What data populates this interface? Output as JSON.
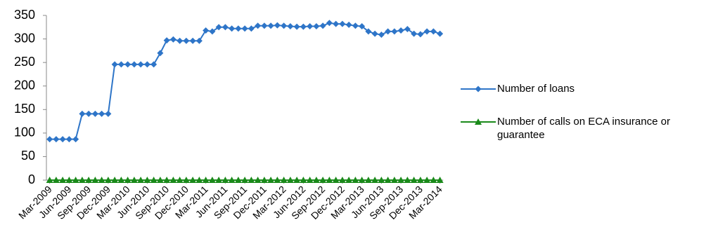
{
  "chart_data": {
    "type": "line",
    "categories": [
      "Mar-2009",
      null,
      null,
      "Jun-2009",
      null,
      null,
      "Sep-2009",
      null,
      null,
      "Dec-2009",
      null,
      null,
      "Mar-2010",
      null,
      null,
      "Jun-2010",
      null,
      null,
      "Sep-2010",
      null,
      null,
      "Dec-2010",
      null,
      null,
      "Mar-2011",
      null,
      null,
      "Jun-2011",
      null,
      null,
      "Sep-2011",
      null,
      null,
      "Dec-2011",
      null,
      null,
      "Mar-2012",
      null,
      null,
      "Jun-2012",
      null,
      null,
      "Sep-2012",
      null,
      null,
      "Dec-2012",
      null,
      null,
      "Mar-2013",
      null,
      null,
      "Jun-2013",
      null,
      null,
      "Sep-2013",
      null,
      null,
      "Dec-2013",
      null,
      null,
      "Mar-2014"
    ],
    "series": [
      {
        "name": "Number of loans",
        "color": "#2e75c8",
        "marker": "diamond",
        "values": [
          87,
          87,
          87,
          87,
          87,
          141,
          141,
          141,
          141,
          141,
          246,
          246,
          246,
          246,
          246,
          246,
          246,
          270,
          297,
          299,
          296,
          296,
          296,
          296,
          318,
          316,
          325,
          325,
          322,
          322,
          322,
          322,
          328,
          328,
          328,
          329,
          328,
          327,
          326,
          326,
          327,
          327,
          328,
          334,
          332,
          332,
          330,
          328,
          327,
          316,
          311,
          309,
          316,
          316,
          318,
          321,
          311,
          310,
          316,
          316,
          311
        ]
      },
      {
        "name": "Number of calls on ECA insurance or guarantee",
        "color": "#1a8a1a",
        "marker": "triangle",
        "values": [
          0,
          0,
          0,
          0,
          0,
          0,
          0,
          0,
          0,
          0,
          0,
          0,
          0,
          0,
          0,
          0,
          0,
          0,
          0,
          0,
          0,
          0,
          0,
          0,
          0,
          0,
          0,
          0,
          0,
          0,
          0,
          0,
          0,
          0,
          0,
          0,
          0,
          0,
          0,
          0,
          0,
          0,
          0,
          0,
          0,
          0,
          0,
          0,
          0,
          0,
          0,
          0,
          0,
          0,
          0,
          0,
          0,
          0,
          0,
          0,
          0
        ]
      }
    ],
    "ylim": [
      0,
      350
    ],
    "yticks": [
      0,
      50,
      100,
      150,
      200,
      250,
      300,
      350
    ],
    "grid": false,
    "legend": "right"
  }
}
